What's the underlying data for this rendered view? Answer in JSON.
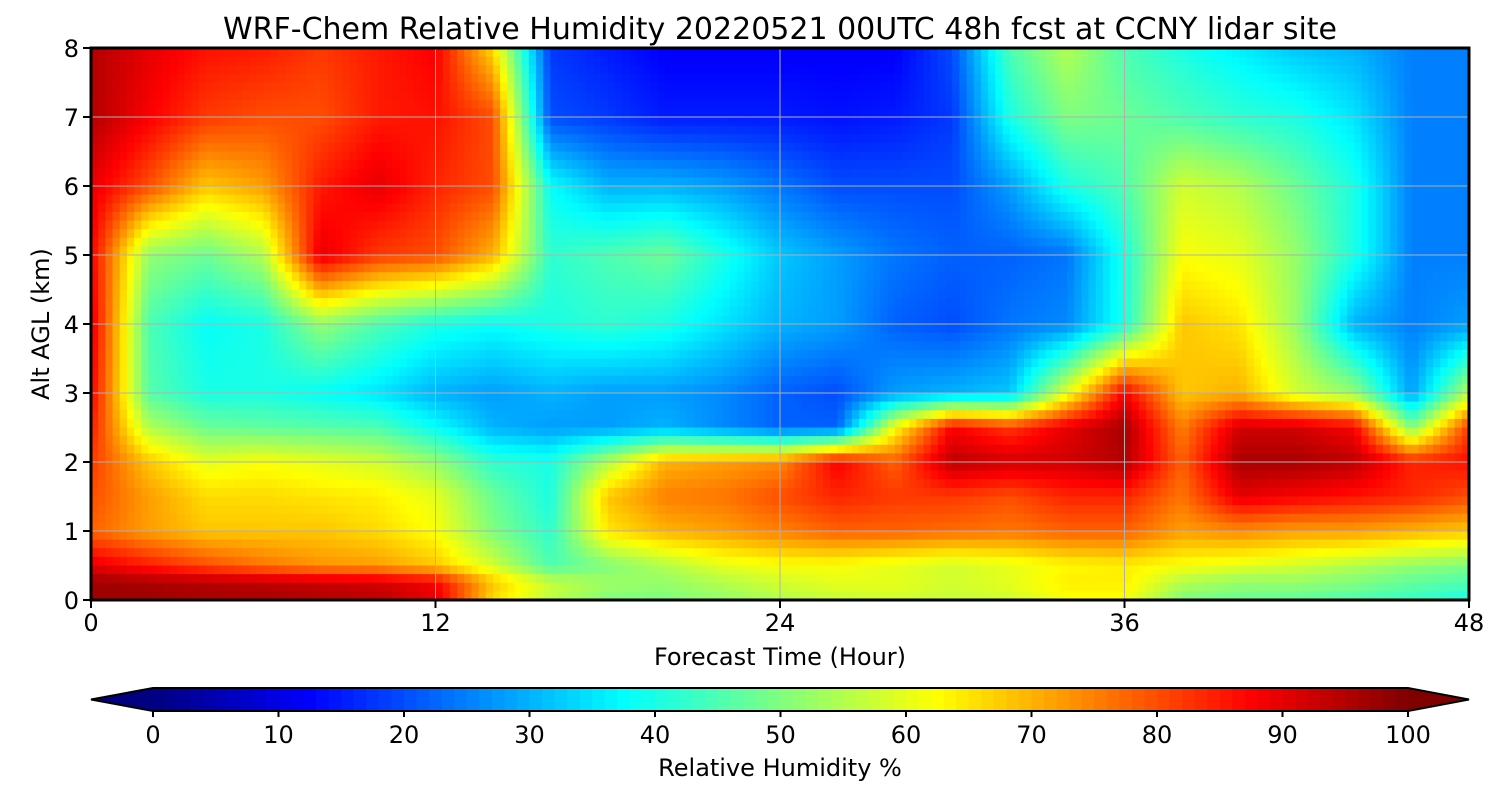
{
  "chart_data": {
    "type": "heatmap",
    "title": "WRF-Chem Relative Humidity 20220521 00UTC 48h fcst at CCNY lidar site",
    "xlabel": "Forecast Time (Hour)",
    "ylabel": "Alt AGL (km)",
    "xlim": [
      0,
      48
    ],
    "ylim": [
      0,
      8
    ],
    "x_ticks": [
      "0",
      "12",
      "24",
      "36",
      "48"
    ],
    "y_ticks": [
      "0",
      "1",
      "2",
      "3",
      "4",
      "5",
      "6",
      "7",
      "8"
    ],
    "grid": true,
    "colormap": "jet",
    "x": [
      0,
      2,
      4,
      6,
      8,
      10,
      12,
      14,
      16,
      18,
      20,
      22,
      24,
      26,
      28,
      30,
      32,
      34,
      36,
      38,
      40,
      42,
      44,
      46,
      48
    ],
    "y": [
      0,
      0.25,
      0.5,
      1,
      1.5,
      2,
      2.5,
      3,
      4,
      5,
      6,
      7,
      8
    ],
    "z": [
      [
        97,
        97,
        96,
        96,
        95,
        94,
        90,
        66,
        56,
        50,
        50,
        52,
        55,
        57,
        58,
        57,
        58,
        62,
        62,
        50,
        48,
        47,
        45,
        43,
        40
      ],
      [
        97,
        96,
        95,
        94,
        93,
        92,
        88,
        68,
        57,
        53,
        52,
        55,
        58,
        60,
        60,
        58,
        60,
        64,
        64,
        55,
        52,
        52,
        50,
        47,
        45
      ],
      [
        90,
        85,
        80,
        76,
        73,
        72,
        68,
        58,
        45,
        50,
        55,
        60,
        62,
        62,
        60,
        58,
        60,
        63,
        64,
        62,
        60,
        58,
        55,
        52,
        50
      ],
      [
        78,
        72,
        68,
        68,
        68,
        66,
        62,
        50,
        42,
        65,
        70,
        72,
        75,
        78,
        78,
        77,
        76,
        78,
        78,
        72,
        74,
        72,
        72,
        70,
        68
      ],
      [
        80,
        72,
        66,
        66,
        65,
        64,
        60,
        48,
        40,
        68,
        75,
        76,
        80,
        84,
        82,
        82,
        80,
        84,
        84,
        76,
        90,
        88,
        86,
        84,
        80
      ],
      [
        82,
        68,
        60,
        62,
        60,
        58,
        52,
        42,
        40,
        55,
        70,
        72,
        74,
        88,
        78,
        94,
        92,
        92,
        95,
        78,
        96,
        96,
        94,
        84,
        86
      ],
      [
        85,
        55,
        48,
        47,
        46,
        45,
        38,
        30,
        28,
        28,
        30,
        26,
        22,
        22,
        62,
        88,
        82,
        90,
        96,
        75,
        92,
        92,
        88,
        50,
        82
      ],
      [
        88,
        46,
        40,
        40,
        38,
        35,
        30,
        28,
        30,
        28,
        28,
        26,
        22,
        20,
        28,
        30,
        32,
        60,
        88,
        68,
        70,
        58,
        52,
        28,
        55
      ],
      [
        90,
        45,
        38,
        40,
        52,
        45,
        40,
        38,
        40,
        42,
        40,
        35,
        30,
        28,
        22,
        20,
        24,
        26,
        40,
        68,
        65,
        52,
        30,
        25,
        28
      ],
      [
        88,
        52,
        48,
        55,
        90,
        82,
        80,
        70,
        42,
        45,
        48,
        40,
        32,
        28,
        24,
        22,
        22,
        24,
        40,
        62,
        60,
        52,
        40,
        25,
        25
      ],
      [
        90,
        80,
        68,
        72,
        85,
        90,
        84,
        80,
        38,
        30,
        30,
        28,
        24,
        20,
        20,
        20,
        28,
        40,
        45,
        58,
        55,
        48,
        40,
        25,
        25
      ],
      [
        95,
        88,
        82,
        80,
        80,
        85,
        86,
        80,
        20,
        18,
        15,
        15,
        15,
        14,
        15,
        18,
        40,
        50,
        48,
        45,
        42,
        40,
        35,
        25,
        25
      ],
      [
        95,
        90,
        86,
        85,
        82,
        85,
        88,
        66,
        18,
        15,
        12,
        12,
        12,
        12,
        12,
        20,
        45,
        55,
        45,
        40,
        36,
        32,
        30,
        25,
        25
      ]
    ],
    "colorbar": {
      "label": "Relative Humidity %",
      "range": [
        0,
        100
      ],
      "ticks": [
        "0",
        "10",
        "20",
        "30",
        "40",
        "50",
        "60",
        "70",
        "80",
        "90",
        "100"
      ],
      "extend": "both",
      "orientation": "horizontal"
    }
  }
}
